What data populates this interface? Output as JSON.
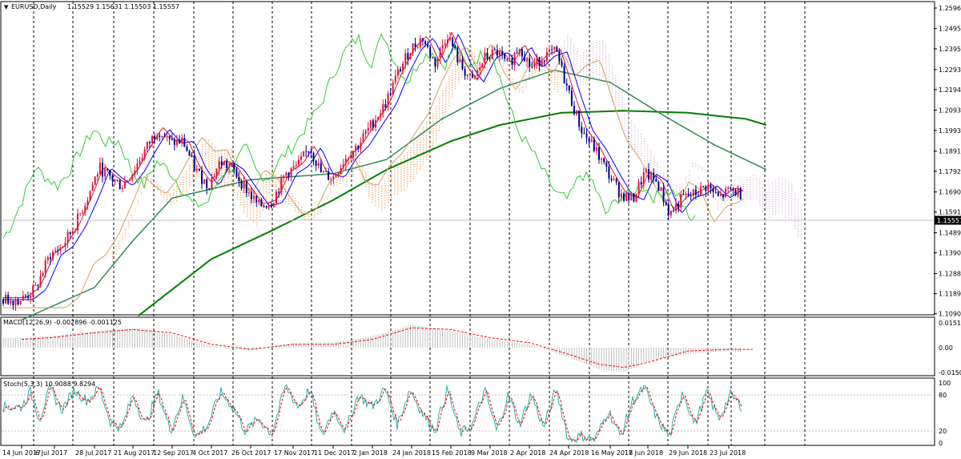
{
  "symbol_label": "EURUSD,Daily",
  "ohlc_label": "1.15529 1.15631 1.15503 1.15557",
  "last_price": "1.15557",
  "colors": {
    "bull": "#dc143c",
    "bear": "#00008b",
    "tenkan": "#dc143c",
    "kijun": "#0000ff",
    "chikou": "#32cd32",
    "ma_slow": "#008000",
    "ma_mid": "#2e8b57",
    "ma_fast": "#d2a060",
    "kumo_up": "#f4a460",
    "kumo_down": "#d8bfd8",
    "macd_hist": "#c0c0c0",
    "macd_signal": "#ff0000",
    "stoch_main": "#20b2aa",
    "stoch_signal": "#ff0000",
    "grid": "#000000",
    "price_line": "#c0c0c0"
  },
  "chart_data": [
    {
      "type": "line",
      "panel": "price",
      "title": "EURUSD,Daily",
      "ylim": [
        1.1085,
        1.2598
      ],
      "y_ticks": [
        "1.25960",
        "1.24950",
        "1.23950",
        "1.22930",
        "1.21940",
        "1.20930",
        "1.19930",
        "1.18910",
        "1.17920",
        "1.16900",
        "1.15910",
        "1.14890",
        "1.13900",
        "1.12880",
        "1.11890",
        "1.10900"
      ],
      "x_ticks": [
        "14 Jun 2017",
        "6 Jul 2017",
        "28 Jul 2017",
        "21 Aug 2017",
        "12 Sep 2017",
        "4 Oct 2017",
        "26 Oct 2017",
        "17 Nov 2017",
        "11 Dec 2017",
        "2 Jan 2018",
        "24 Jan 2018",
        "15 Feb 2018",
        "9 Mar 2018",
        "2 Apr 2018",
        "24 Apr 2018",
        "16 May 2018",
        "7 Jun 2018",
        "29 Jun 2018",
        "23 Jul 2018"
      ],
      "close_path": [
        [
          "14 Jun 2017",
          1.116
        ],
        [
          "23 Jun 2017",
          1.121
        ],
        [
          "3 Jul 2017",
          1.138
        ],
        [
          "10 Jul 2017",
          1.142
        ],
        [
          "17 Jul 2017",
          1.152
        ],
        [
          "24 Jul 2017",
          1.166
        ],
        [
          "31 Jul 2017",
          1.181
        ],
        [
          "7 Aug 2017",
          1.176
        ],
        [
          "14 Aug 2017",
          1.172
        ],
        [
          "21 Aug 2017",
          1.179
        ],
        [
          "28 Aug 2017",
          1.19
        ],
        [
          "4 Sep 2017",
          1.2
        ],
        [
          "11 Sep 2017",
          1.193
        ],
        [
          "18 Sep 2017",
          1.194
        ],
        [
          "25 Sep 2017",
          1.18
        ],
        [
          "2 Oct 2017",
          1.172
        ],
        [
          "9 Oct 2017",
          1.184
        ],
        [
          "16 Oct 2017",
          1.18
        ],
        [
          "23 Oct 2017",
          1.171
        ],
        [
          "30 Oct 2017",
          1.162
        ],
        [
          "6 Nov 2017",
          1.164
        ],
        [
          "13 Nov 2017",
          1.178
        ],
        [
          "20 Nov 2017",
          1.182
        ],
        [
          "27 Nov 2017",
          1.191
        ],
        [
          "4 Dec 2017",
          1.178
        ],
        [
          "11 Dec 2017",
          1.176
        ],
        [
          "18 Dec 2017",
          1.186
        ],
        [
          "25 Dec 2017",
          1.192
        ],
        [
          "2 Jan 2018",
          1.203
        ],
        [
          "9 Jan 2018",
          1.212
        ],
        [
          "16 Jan 2018",
          1.227
        ],
        [
          "23 Jan 2018",
          1.239
        ],
        [
          "30 Jan 2018",
          1.245
        ],
        [
          "6 Feb 2018",
          1.232
        ],
        [
          "13 Feb 2018",
          1.247
        ],
        [
          "20 Feb 2018",
          1.232
        ],
        [
          "27 Feb 2018",
          1.223
        ],
        [
          "6 Mar 2018",
          1.235
        ],
        [
          "13 Mar 2018",
          1.238
        ],
        [
          "20 Mar 2018",
          1.231
        ],
        [
          "27 Mar 2018",
          1.241
        ],
        [
          "3 Apr 2018",
          1.23
        ],
        [
          "10 Apr 2018",
          1.236
        ],
        [
          "17 Apr 2018",
          1.238
        ],
        [
          "24 Apr 2018",
          1.218
        ],
        [
          "1 May 2018",
          1.199
        ],
        [
          "8 May 2018",
          1.19
        ],
        [
          "15 May 2018",
          1.178
        ],
        [
          "22 May 2018",
          1.168
        ],
        [
          "29 May 2018",
          1.165
        ],
        [
          "5 Jun 2018",
          1.178
        ],
        [
          "12 Jun 2018",
          1.174
        ],
        [
          "19 Jun 2018",
          1.158
        ],
        [
          "26 Jun 2018",
          1.166
        ],
        [
          "3 Jul 2018",
          1.168
        ],
        [
          "10 Jul 2018",
          1.172
        ],
        [
          "17 Jul 2018",
          1.166
        ],
        [
          "24 Jul 2018",
          1.17
        ],
        [
          "31 Jul 2018",
          1.168
        ],
        [
          "6 Aug 2018",
          1.1556
        ]
      ],
      "ma_slow_path": [
        [
          "24 Aug 2017",
          1.108
        ],
        [
          "4 Oct 2017",
          1.136
        ],
        [
          "6 Nov 2017",
          1.15
        ],
        [
          "11 Dec 2017",
          1.165
        ],
        [
          "10 Jan 2018",
          1.18
        ],
        [
          "15 Feb 2018",
          1.194
        ],
        [
          "15 Mar 2018",
          1.202
        ],
        [
          "20 Apr 2018",
          1.208
        ],
        [
          "24 May 2018",
          1.209
        ],
        [
          "29 Jun 2018",
          1.208
        ],
        [
          "2 Aug 2018",
          1.205
        ],
        [
          "14 Aug 2018",
          1.202
        ]
      ],
      "ma_mid_path": [
        [
          "14 Jun 2017",
          1.106
        ],
        [
          "28 Jul 2017",
          1.122
        ],
        [
          "21 Aug 2017",
          1.145
        ],
        [
          "12 Sep 2017",
          1.166
        ],
        [
          "26 Oct 2017",
          1.175
        ],
        [
          "11 Dec 2017",
          1.178
        ],
        [
          "10 Jan 2018",
          1.185
        ],
        [
          "10 Feb 2018",
          1.205
        ],
        [
          "15 Mar 2018",
          1.22
        ],
        [
          "16 Apr 2018",
          1.229
        ],
        [
          "16 May 2018",
          1.223
        ],
        [
          "15 Jun 2018",
          1.207
        ],
        [
          "15 Jul 2018",
          1.192
        ],
        [
          "14 Aug 2018",
          1.18
        ]
      ]
    },
    {
      "type": "bar",
      "panel": "macd",
      "label": "MACD(12,26,9) -0.002896 -0.001125",
      "y_ticks": [
        "0.015144",
        "0.00",
        "-0.01506"
      ],
      "ylim": [
        -0.0165,
        0.0165
      ],
      "histogram_points": [
        [
          "14 Jun 2017",
          0.006
        ],
        [
          "3 Jul 2017",
          0.007
        ],
        [
          "28 Jul 2017",
          0.01
        ],
        [
          "21 Aug 2017",
          0.012
        ],
        [
          "12 Sep 2017",
          0.008
        ],
        [
          "4 Oct 2017",
          0.001
        ],
        [
          "26 Oct 2017",
          -0.002
        ],
        [
          "17 Nov 2017",
          0.003
        ],
        [
          "11 Dec 2017",
          0.003
        ],
        [
          "2 Jan 2018",
          0.007
        ],
        [
          "24 Jan 2018",
          0.014
        ],
        [
          "15 Feb 2018",
          0.01
        ],
        [
          "9 Mar 2018",
          0.005
        ],
        [
          "2 Apr 2018",
          0.002
        ],
        [
          "24 Apr 2018",
          -0.006
        ],
        [
          "10 May 2018",
          -0.013
        ],
        [
          "24 May 2018",
          -0.015
        ],
        [
          "7 Jun 2018",
          -0.008
        ],
        [
          "29 Jun 2018",
          -0.004
        ],
        [
          "23 Jul 2018",
          -0.002
        ],
        [
          "6 Aug 2018",
          -0.003
        ]
      ],
      "signal_points": [
        [
          "14 Jun 2017",
          0.005
        ],
        [
          "3 Jul 2017",
          0.006
        ],
        [
          "28 Jul 2017",
          0.009
        ],
        [
          "21 Aug 2017",
          0.011
        ],
        [
          "12 Sep 2017",
          0.009
        ],
        [
          "4 Oct 2017",
          0.002
        ],
        [
          "26 Oct 2017",
          -0.001
        ],
        [
          "17 Nov 2017",
          0.002
        ],
        [
          "11 Dec 2017",
          0.002
        ],
        [
          "2 Jan 2018",
          0.005
        ],
        [
          "24 Jan 2018",
          0.012
        ],
        [
          "15 Feb 2018",
          0.011
        ],
        [
          "9 Mar 2018",
          0.006
        ],
        [
          "2 Apr 2018",
          0.003
        ],
        [
          "24 Apr 2018",
          -0.004
        ],
        [
          "10 May 2018",
          -0.01
        ],
        [
          "24 May 2018",
          -0.012
        ],
        [
          "7 Jun 2018",
          -0.009
        ],
        [
          "29 Jun 2018",
          -0.002
        ],
        [
          "23 Jul 2018",
          -0.001
        ],
        [
          "6 Aug 2018",
          -0.001
        ]
      ]
    },
    {
      "type": "line",
      "panel": "stochastic",
      "label": "Stoch(5,3,3) 10.9088 9.8294",
      "y_ticks": [
        "100",
        "80",
        "20",
        "0"
      ],
      "ylim": [
        0,
        100
      ],
      "levels": [
        80,
        20
      ],
      "main_points": [
        [
          "14 Jun 2017",
          60
        ],
        [
          "20 Jun 2017",
          85
        ],
        [
          "26 Jun 2017",
          40
        ],
        [
          "3 Jul 2017",
          90
        ],
        [
          "10 Jul 2017",
          55
        ],
        [
          "17 Jul 2017",
          88
        ],
        [
          "24 Jul 2017",
          70
        ],
        [
          "31 Jul 2017",
          92
        ],
        [
          "7 Aug 2017",
          35
        ],
        [
          "14 Aug 2017",
          25
        ],
        [
          "21 Aug 2017",
          80
        ],
        [
          "28 Aug 2017",
          30
        ],
        [
          "4 Sep 2017",
          85
        ],
        [
          "11 Sep 2017",
          20
        ],
        [
          "18 Sep 2017",
          75
        ],
        [
          "25 Sep 2017",
          10
        ],
        [
          "2 Oct 2017",
          30
        ],
        [
          "9 Oct 2017",
          85
        ],
        [
          "16 Oct 2017",
          60
        ],
        [
          "23 Oct 2017",
          20
        ],
        [
          "30 Oct 2017",
          40
        ],
        [
          "6 Nov 2017",
          15
        ],
        [
          "13 Nov 2017",
          95
        ],
        [
          "20 Nov 2017",
          60
        ],
        [
          "27 Nov 2017",
          90
        ],
        [
          "4 Dec 2017",
          10
        ],
        [
          "11 Dec 2017",
          55
        ],
        [
          "18 Dec 2017",
          20
        ],
        [
          "25 Dec 2017",
          80
        ],
        [
          "2 Jan 2018",
          60
        ],
        [
          "9 Jan 2018",
          90
        ],
        [
          "16 Jan 2018",
          30
        ],
        [
          "23 Jan 2018",
          90
        ],
        [
          "30 Jan 2018",
          50
        ],
        [
          "6 Feb 2018",
          20
        ],
        [
          "13 Feb 2018",
          90
        ],
        [
          "20 Feb 2018",
          15
        ],
        [
          "27 Feb 2018",
          30
        ],
        [
          "6 Mar 2018",
          88
        ],
        [
          "13 Mar 2018",
          20
        ],
        [
          "20 Mar 2018",
          80
        ],
        [
          "27 Mar 2018",
          30
        ],
        [
          "3 Apr 2018",
          82
        ],
        [
          "10 Apr 2018",
          25
        ],
        [
          "17 Apr 2018",
          90
        ],
        [
          "24 Apr 2018",
          5
        ],
        [
          "1 May 2018",
          12
        ],
        [
          "8 May 2018",
          5
        ],
        [
          "15 May 2018",
          55
        ],
        [
          "22 May 2018",
          10
        ],
        [
          "29 May 2018",
          70
        ],
        [
          "5 Jun 2018",
          92
        ],
        [
          "12 Jun 2018",
          40
        ],
        [
          "19 Jun 2018",
          10
        ],
        [
          "26 Jun 2018",
          88
        ],
        [
          "3 Jul 2018",
          30
        ],
        [
          "10 Jul 2018",
          85
        ],
        [
          "17 Jul 2018",
          40
        ],
        [
          "24 Jul 2018",
          80
        ],
        [
          "31 Jul 2018",
          60
        ],
        [
          "6 Aug 2018",
          11
        ]
      ]
    }
  ]
}
